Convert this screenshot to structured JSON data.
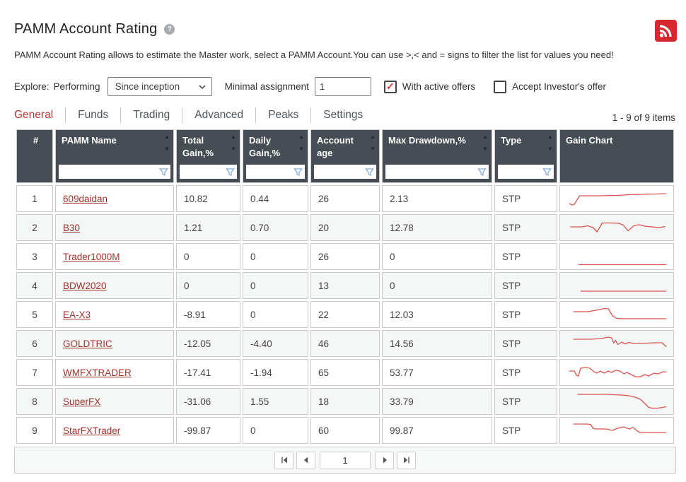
{
  "page": {
    "title": "PAMM Account Rating",
    "description": "PAMM Account Rating allows to estimate the Master work, select a PAMM Account.You can use >,< and = signs to filter the list for values you need!"
  },
  "filters": {
    "explore_label": "Explore:",
    "explore_value": "Performing",
    "period_selected": "Since inception",
    "minimal_assignment_label": "Minimal assignment",
    "minimal_assignment_value": "1",
    "with_active_offers": {
      "label": "With active offers",
      "checked": true
    },
    "accept_investors_offer": {
      "label": "Accept Investor's offer",
      "checked": false
    }
  },
  "tabs": [
    {
      "label": "General",
      "active": true
    },
    {
      "label": "Funds",
      "active": false
    },
    {
      "label": "Trading",
      "active": false
    },
    {
      "label": "Advanced",
      "active": false
    },
    {
      "label": "Peaks",
      "active": false
    },
    {
      "label": "Settings",
      "active": false
    }
  ],
  "items_count": "1 - 9 of 9 items",
  "table": {
    "columns": [
      {
        "id": "num",
        "label": "#",
        "sortable": false,
        "filterable": false
      },
      {
        "id": "name",
        "label": "PAMM Name",
        "sortable": true,
        "filterable": true
      },
      {
        "id": "total_gain",
        "label": "Total Gain,%",
        "sortable": true,
        "filterable": true
      },
      {
        "id": "daily_gain",
        "label": "Daily Gain,%",
        "sortable": true,
        "filterable": true
      },
      {
        "id": "account_age",
        "label": "Account age",
        "sortable": true,
        "filterable": true
      },
      {
        "id": "max_drawdown",
        "label": "Max Drawdown,%",
        "sortable": true,
        "filterable": true
      },
      {
        "id": "type",
        "label": "Type",
        "sortable": true,
        "filterable": true
      },
      {
        "id": "gain_chart",
        "label": "Gain Chart",
        "sortable": false,
        "filterable": false
      }
    ],
    "rows": [
      {
        "num": "1",
        "name": "609daidan",
        "total_gain": "10.82",
        "daily_gain": "0.44",
        "account_age": "26",
        "max_drawdown": "2.13",
        "type": "STP",
        "spark": [
          [
            4,
            22
          ],
          [
            7,
            24
          ],
          [
            9,
            23
          ],
          [
            14,
            11
          ],
          [
            22,
            11
          ],
          [
            35,
            11
          ],
          [
            50,
            10.5
          ],
          [
            62,
            9.5
          ],
          [
            75,
            9
          ],
          [
            88,
            8.5
          ],
          [
            98,
            8
          ]
        ]
      },
      {
        "num": "2",
        "name": "B30",
        "total_gain": "1.21",
        "daily_gain": "0.70",
        "account_age": "20",
        "max_drawdown": "12.78",
        "type": "STP",
        "spark": [
          [
            5,
            14
          ],
          [
            16,
            14
          ],
          [
            22,
            12.5
          ],
          [
            27,
            15
          ],
          [
            31,
            21
          ],
          [
            36,
            8.5
          ],
          [
            45,
            8.5
          ],
          [
            52,
            9
          ],
          [
            56,
            11
          ],
          [
            61,
            19.5
          ],
          [
            67,
            12
          ],
          [
            72,
            11
          ],
          [
            77,
            13
          ],
          [
            84,
            14
          ],
          [
            91,
            15
          ],
          [
            97,
            13.5
          ]
        ]
      },
      {
        "num": "3",
        "name": "Trader1000M",
        "total_gain": "0",
        "daily_gain": "0",
        "account_age": "26",
        "max_drawdown": "0",
        "type": "STP",
        "spark": [
          [
            13,
            26.5
          ],
          [
            98,
            26.5
          ]
        ]
      },
      {
        "num": "4",
        "name": "BDW2020",
        "total_gain": "0",
        "daily_gain": "0",
        "account_age": "13",
        "max_drawdown": "0",
        "type": "STP",
        "spark": [
          [
            15,
            23
          ],
          [
            98,
            23
          ]
        ]
      },
      {
        "num": "5",
        "name": "EA-X3",
        "total_gain": "-8.91",
        "daily_gain": "0",
        "account_age": "22",
        "max_drawdown": "12.03",
        "type": "STP",
        "spark": [
          [
            8,
            11
          ],
          [
            22,
            11
          ],
          [
            30,
            9
          ],
          [
            38,
            6.5
          ],
          [
            42,
            7
          ],
          [
            46,
            17
          ],
          [
            50,
            20.5
          ],
          [
            56,
            21
          ],
          [
            98,
            21
          ]
        ]
      },
      {
        "num": "6",
        "name": "GOLDTRIC",
        "total_gain": "-12.05",
        "daily_gain": "-4.40",
        "account_age": "46",
        "max_drawdown": "14.56",
        "type": "STP",
        "spark": [
          [
            8,
            9
          ],
          [
            25,
            9
          ],
          [
            35,
            8
          ],
          [
            42,
            6
          ],
          [
            45,
            7
          ],
          [
            47,
            14
          ],
          [
            49,
            11
          ],
          [
            51,
            16.5
          ],
          [
            55,
            13
          ],
          [
            58,
            15.5
          ],
          [
            62,
            13.5
          ],
          [
            66,
            15
          ],
          [
            72,
            15
          ],
          [
            80,
            14.5
          ],
          [
            88,
            14
          ],
          [
            94,
            14
          ],
          [
            98,
            19.5
          ]
        ]
      },
      {
        "num": "7",
        "name": "WMFXTRADER",
        "total_gain": "-17.41",
        "daily_gain": "-1.94",
        "account_age": "65",
        "max_drawdown": "53.77",
        "type": "STP",
        "spark": [
          [
            4,
            13
          ],
          [
            9,
            13
          ],
          [
            11,
            19
          ],
          [
            13,
            20
          ],
          [
            15,
            9
          ],
          [
            20,
            8
          ],
          [
            24,
            9
          ],
          [
            28,
            14
          ],
          [
            31,
            16
          ],
          [
            34,
            13
          ],
          [
            38,
            16
          ],
          [
            42,
            13
          ],
          [
            45,
            15
          ],
          [
            49,
            12
          ],
          [
            53,
            13
          ],
          [
            57,
            17
          ],
          [
            60,
            15
          ],
          [
            64,
            18
          ],
          [
            68,
            21
          ],
          [
            73,
            21
          ],
          [
            77,
            18
          ],
          [
            81,
            20
          ],
          [
            86,
            16
          ],
          [
            90,
            17
          ],
          [
            95,
            14
          ],
          [
            98,
            14.5
          ]
        ]
      },
      {
        "num": "8",
        "name": "SuperFX",
        "total_gain": "-31.06",
        "daily_gain": "1.55",
        "account_age": "18",
        "max_drawdown": "33.79",
        "type": "STP",
        "spark": [
          [
            12,
            5
          ],
          [
            40,
            5
          ],
          [
            55,
            6
          ],
          [
            62,
            7
          ],
          [
            68,
            9
          ],
          [
            73,
            12
          ],
          [
            78,
            19
          ],
          [
            81,
            23.5
          ],
          [
            84,
            24.5
          ],
          [
            90,
            24.5
          ],
          [
            98,
            22.5
          ]
        ]
      },
      {
        "num": "9",
        "name": "StarFXTrader",
        "total_gain": "-99.87",
        "daily_gain": "0",
        "account_age": "60",
        "max_drawdown": "99.87",
        "type": "STP",
        "spark": [
          [
            8,
            6
          ],
          [
            22,
            6
          ],
          [
            25,
            7
          ],
          [
            27,
            12
          ],
          [
            30,
            13
          ],
          [
            40,
            13
          ],
          [
            43,
            14
          ],
          [
            46,
            15
          ],
          [
            49,
            13
          ],
          [
            53,
            11
          ],
          [
            57,
            10
          ],
          [
            60,
            12
          ],
          [
            63,
            13
          ],
          [
            65,
            11
          ],
          [
            67,
            12
          ],
          [
            70,
            16
          ],
          [
            73,
            18
          ],
          [
            78,
            18
          ],
          [
            98,
            18
          ]
        ]
      }
    ]
  },
  "pagination": {
    "page": "1"
  },
  "colors": {
    "spark_line": "#d9534f",
    "accent_red": "#b8352f",
    "rss_red": "#d7282f",
    "header_bg": "#474d55",
    "link_red": "#a2322c",
    "funnel_blue": "#85aed1"
  }
}
